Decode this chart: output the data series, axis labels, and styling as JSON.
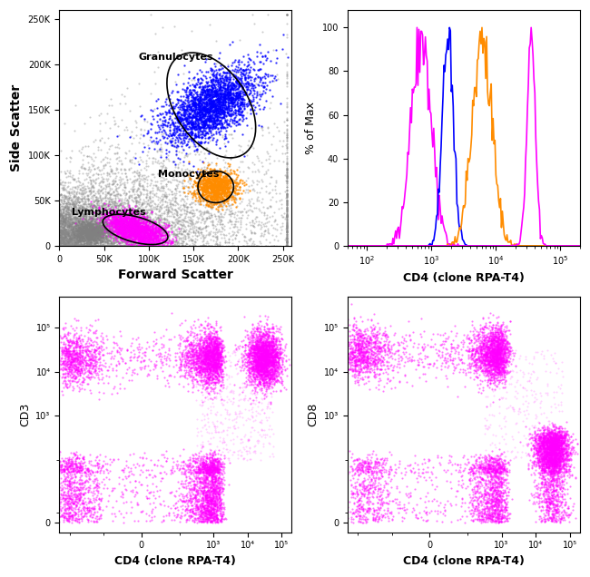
{
  "scatter_xlim": [
    0,
    260000
  ],
  "scatter_ylim": [
    0,
    260000
  ],
  "scatter_xticks": [
    0,
    50000,
    100000,
    150000,
    200000,
    250000
  ],
  "scatter_yticks": [
    0,
    50000,
    100000,
    150000,
    200000,
    250000
  ],
  "scatter_xlabel": "Forward Scatter",
  "scatter_ylabel": "Side Scatter",
  "granulocytes_label": "Granulocytes",
  "monocytes_label": "Monocytes",
  "lymphocytes_label": "Lymphocytes",
  "granulocytes_color": "#0000FF",
  "monocytes_color": "#FF8C00",
  "lymphocytes_color": "#FF00FF",
  "dead_color": "#808080",
  "hist_xlabel": "CD4 (clone RPA-T4)",
  "hist_ylabel": "% of Max",
  "hist_colors": [
    "#FF00FF",
    "#0000FF",
    "#FF8C00",
    "#FF00FF"
  ],
  "cd3_xlabel": "CD4 (clone RPA-T4)",
  "cd3_ylabel": "CD3",
  "cd8_xlabel": "CD4 (clone RPA-T4)",
  "cd8_ylabel": "CD8",
  "dot_color": "#FF00FF",
  "background_color": "#FFFFFF",
  "seed": 42
}
